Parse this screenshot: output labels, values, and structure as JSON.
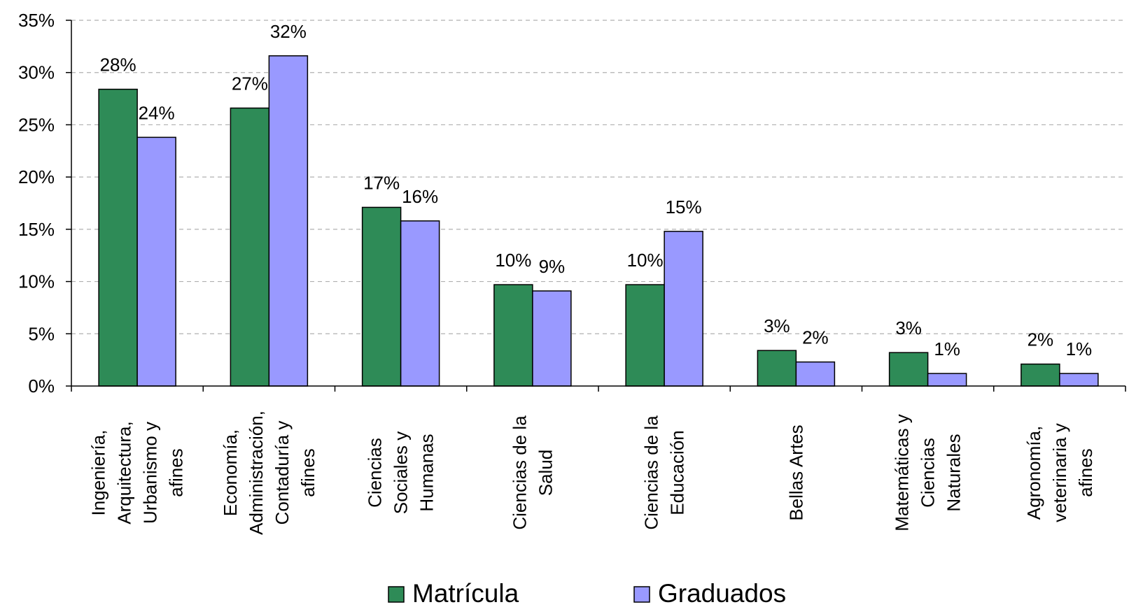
{
  "chart_data": {
    "type": "bar",
    "categories": [
      [
        "Ingeniería,",
        "Arquitectura,",
        "Urbanismo y",
        "afines"
      ],
      [
        "Economía,",
        "Administración,",
        "Contaduría y",
        "afines"
      ],
      [
        "Ciencias",
        "Sociales y",
        "Humanas"
      ],
      [
        "Ciencias de la",
        "Salud"
      ],
      [
        "Ciencias de la",
        "Educación"
      ],
      [
        "Bellas Artes"
      ],
      [
        "Matemáticas y",
        "Ciencias",
        "Naturales"
      ],
      [
        "Agronomía,",
        "veterinaria y",
        "afines"
      ]
    ],
    "series": [
      {
        "name": "Matrícula",
        "color": "#2e8b57",
        "values": [
          28.4,
          26.6,
          17.1,
          9.7,
          9.7,
          3.4,
          3.2,
          2.1
        ],
        "labels": [
          "28%",
          "27%",
          "17%",
          "10%",
          "10%",
          "3%",
          "3%",
          "2%"
        ]
      },
      {
        "name": "Graduados",
        "color": "#9999ff",
        "values": [
          23.8,
          31.6,
          15.8,
          9.1,
          14.8,
          2.3,
          1.2,
          1.2
        ],
        "labels": [
          "24%",
          "32%",
          "16%",
          "9%",
          "15%",
          "2%",
          "1%",
          "1%"
        ]
      }
    ],
    "yticks": [
      "0%",
      "5%",
      "10%",
      "15%",
      "20%",
      "25%",
      "30%",
      "35%"
    ],
    "ylim": [
      0,
      35
    ],
    "grid": true,
    "legend_position": "bottom"
  }
}
